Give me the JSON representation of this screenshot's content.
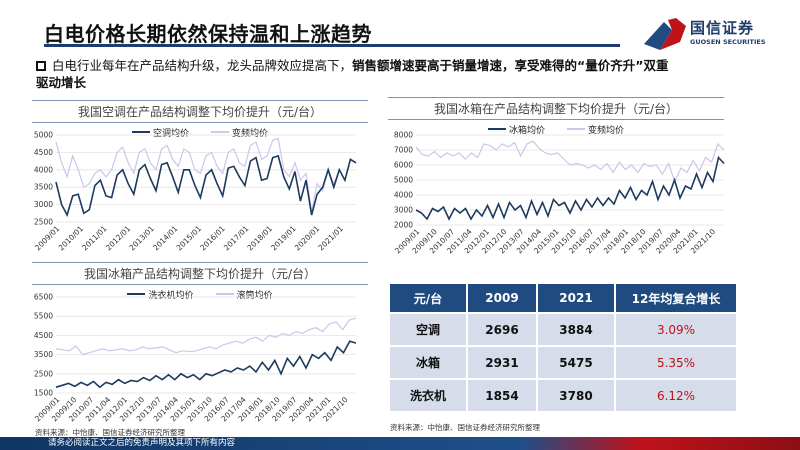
{
  "header": {
    "title": "白电价格长期依然保持温和上涨趋势",
    "logo_cn": "国信证券",
    "logo_en": "GUOSEN SECURITIES"
  },
  "bullet": {
    "normal": "白电行业每年在产品结构升级，龙头品牌效应提高下，",
    "bold": "销售额增速要高于销量增速，享受难得的“量价齐升”双重驱动增长"
  },
  "colors": {
    "dark": "#1c3a5e",
    "light": "#c9c7ea",
    "accent": "#1f4b80",
    "red": "#c0121a"
  },
  "chart_data": [
    {
      "type": "line",
      "title": "我国空调在产品结构调整下均价提升（元/台）",
      "ylim": [
        2500,
        5000
      ],
      "yticks": [
        5000,
        4500,
        4000,
        3500,
        3000,
        2500
      ],
      "xticks": [
        "2009/01",
        "2010/01",
        "2011/01",
        "2012/01",
        "2013/01",
        "2014/01",
        "2015/01",
        "2016/01",
        "2017/01",
        "2018/01",
        "2019/01",
        "2020/01",
        "2021/01"
      ],
      "xrange": [
        2009.0,
        2022.0
      ],
      "series": [
        {
          "name": "空调均价",
          "values": [
            3650,
            3000,
            2700,
            3250,
            3300,
            2750,
            2850,
            3550,
            3700,
            3250,
            3200,
            3850,
            4000,
            3600,
            3300,
            4000,
            4150,
            3750,
            3400,
            4150,
            4200,
            3800,
            3350,
            4000,
            4000,
            3550,
            3200,
            3850,
            4000,
            3600,
            3250,
            4050,
            4100,
            3800,
            3550,
            4250,
            4350,
            3700,
            3750,
            4350,
            4400,
            3800,
            3450,
            3950,
            3100,
            3700,
            2700,
            3300,
            3500,
            4000,
            3500,
            4000,
            3700,
            4300,
            4200
          ]
        },
        {
          "name": "变频均价",
          "values": [
            4800,
            4200,
            3800,
            4400,
            4000,
            3500,
            3600,
            3900,
            4000,
            3800,
            4000,
            4500,
            4650,
            4200,
            3900,
            4500,
            4600,
            4200,
            4000,
            4600,
            4700,
            4300,
            4100,
            4600,
            4500,
            4000,
            3900,
            4400,
            4500,
            4100,
            3900,
            4500,
            4600,
            4200,
            4100,
            4700,
            4800,
            4300,
            4400,
            4850,
            4900,
            4000,
            3800,
            4200,
            3700,
            3900,
            2800,
            3600,
            3400,
            4000,
            3600,
            4000,
            3700,
            4300,
            4200
          ]
        }
      ]
    },
    {
      "type": "line",
      "title": "我国冰箱在产品结构调整下均价提升（元/台）",
      "ylim": [
        2000,
        8000
      ],
      "yticks": [
        8000,
        7000,
        6000,
        5000,
        4000,
        3000,
        2000
      ],
      "xticks": [
        "2009/01",
        "2009/10",
        "2010/07",
        "2011/04",
        "2012/01",
        "2012/10",
        "2013/07",
        "2014/04",
        "2015/01",
        "2015/10",
        "2016/07",
        "2017/04",
        "2018/01",
        "2018/10",
        "2019/07",
        "2020/04",
        "2021/01",
        "2021/10"
      ],
      "xrange": [
        2009.0,
        2022.0
      ],
      "series": [
        {
          "name": "冰箱均价",
          "values": [
            3000,
            2800,
            2400,
            3100,
            2900,
            3200,
            2400,
            3100,
            2800,
            3100,
            2400,
            3000,
            2600,
            3300,
            2500,
            3400,
            2500,
            3500,
            3000,
            3300,
            2500,
            3600,
            2700,
            3500,
            2600,
            3700,
            3300,
            3500,
            2800,
            3600,
            3000,
            3700,
            3200,
            3800,
            3300,
            3800,
            3400,
            4300,
            3800,
            4500,
            3700,
            4300,
            4000,
            4900,
            3700,
            4600,
            4000,
            5000,
            3800,
            4600,
            4400,
            5400,
            4500,
            5500,
            4900,
            6500,
            6100
          ]
        },
        {
          "name": "变频均价",
          "values": [
            7200,
            6700,
            6600,
            6900,
            6500,
            6800,
            6600,
            6800,
            6400,
            6800,
            6500,
            7400,
            7300,
            7000,
            7400,
            7200,
            7500,
            6600,
            7400,
            7600,
            7100,
            6800,
            6700,
            6800,
            6400,
            6000,
            6100,
            6000,
            5800,
            6000,
            5700,
            6100,
            5500,
            6200,
            5700,
            6000,
            5500,
            6100,
            5900,
            6000,
            5400,
            6100,
            4900,
            5800,
            5500,
            6300,
            5600,
            6500,
            6200,
            7400,
            7000
          ]
        }
      ]
    },
    {
      "type": "line",
      "title": "我国冰箱产品结构调整下均价提升（元/台）",
      "ylim": [
        1500,
        6500
      ],
      "yticks": [
        6500,
        5500,
        4500,
        3500,
        2500,
        1500
      ],
      "xticks": [
        "2009/01",
        "2009/10",
        "2010/07",
        "2011/04",
        "2012/01",
        "2012/10",
        "2013/07",
        "2014/04",
        "2015/01",
        "2015/10",
        "2016/07",
        "2017/04",
        "2018/01",
        "2018/10",
        "2019/07",
        "2020/04",
        "2021/01",
        "2021/10"
      ],
      "xrange": [
        2009.0,
        2022.0
      ],
      "series": [
        {
          "name": "洗衣机均价",
          "values": [
            1800,
            1900,
            2000,
            1850,
            2050,
            1900,
            2100,
            1800,
            2050,
            1950,
            2200,
            2000,
            2150,
            2100,
            2300,
            2150,
            2400,
            2200,
            2450,
            2200,
            2500,
            2300,
            2450,
            2200,
            2500,
            2400,
            2550,
            2700,
            2600,
            2800,
            2700,
            2900,
            2600,
            3100,
            2700,
            3200,
            2500,
            3300,
            2900,
            3400,
            2800,
            3500,
            3300,
            3600,
            3200,
            3900,
            3600,
            4200,
            4100
          ]
        },
        {
          "name": "滚筒均价",
          "values": [
            3800,
            3750,
            3700,
            3950,
            3500,
            3600,
            3700,
            3800,
            3700,
            3750,
            3800,
            3700,
            3750,
            3900,
            3800,
            3850,
            3900,
            3750,
            3600,
            3700,
            3650,
            3700,
            3800,
            3900,
            3800,
            4000,
            4100,
            4200,
            4100,
            4300,
            4400,
            4200,
            4500,
            4400,
            4600,
            4500,
            4700,
            4600,
            4800,
            4900,
            4700,
            5100,
            5200,
            4800,
            5300,
            5400
          ]
        }
      ]
    },
    {
      "type": "table",
      "headers": [
        "元/台",
        "2009",
        "2021",
        "12年均复合增长"
      ],
      "rows": [
        [
          "空调",
          "2696",
          "3884",
          "3.09%"
        ],
        [
          "冰箱",
          "2931",
          "5475",
          "5.35%"
        ],
        [
          "洗衣机",
          "1854",
          "3780",
          "6.12%"
        ]
      ]
    }
  ],
  "sources": {
    "left": "资料来源：中怡康、国信证券经济研究所整理",
    "right": "资料来源：中怡康、国信证券经济研究所整理"
  },
  "footer": {
    "text": "请务必阅读正文之后的免责声明及其项下所有内容"
  }
}
